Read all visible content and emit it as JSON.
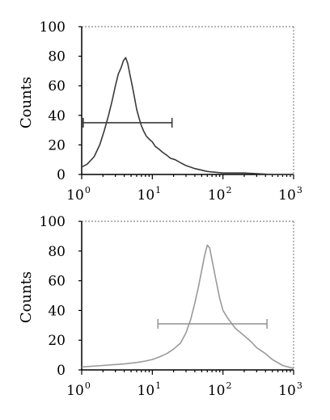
{
  "chart_data": [
    {
      "type": "line",
      "ylabel": "Counts",
      "xlabel": "",
      "x_scale": "log",
      "xlim": [
        1,
        1000
      ],
      "ylim": [
        0,
        100
      ],
      "yticks": [
        0,
        20,
        40,
        60,
        80,
        100
      ],
      "xticks": [
        {
          "base": "10",
          "exp": "0"
        },
        {
          "base": "10",
          "exp": "1"
        },
        {
          "base": "10",
          "exp": "2"
        },
        {
          "base": "10",
          "exp": "3"
        }
      ],
      "grid": false,
      "line_color": "#3a3a3a",
      "series": [
        {
          "x": [
            1.0,
            1.2,
            1.5,
            1.8,
            2.1,
            2.4,
            2.7,
            3.0,
            3.3,
            3.6,
            3.9,
            4.2,
            4.5,
            4.8,
            5.2,
            5.6,
            6.0,
            6.5,
            7.0,
            7.6,
            8.2,
            9.0,
            10,
            11,
            12.5,
            14,
            16,
            18,
            21,
            25,
            30,
            40,
            60,
            100,
            200,
            500,
            1000
          ],
          "y": [
            5,
            7,
            12,
            20,
            30,
            40,
            50,
            60,
            68,
            72,
            77,
            79,
            75,
            68,
            60,
            52,
            44,
            38,
            33,
            29,
            26,
            24,
            22,
            19,
            17,
            15,
            13,
            11,
            10,
            8,
            6,
            4,
            2,
            1,
            1,
            0,
            0
          ]
        }
      ],
      "gate": {
        "x_start": 1.05,
        "x_end": 19,
        "y": 35
      }
    },
    {
      "type": "line",
      "ylabel": "Counts",
      "xlabel": "",
      "x_scale": "log",
      "xlim": [
        1,
        1000
      ],
      "ylim": [
        0,
        100
      ],
      "yticks": [
        0,
        20,
        40,
        60,
        80,
        100
      ],
      "xticks": [
        {
          "base": "10",
          "exp": "0"
        },
        {
          "base": "10",
          "exp": "1"
        },
        {
          "base": "10",
          "exp": "2"
        },
        {
          "base": "10",
          "exp": "3"
        }
      ],
      "grid": false,
      "line_color": "#9a9a9a",
      "series": [
        {
          "x": [
            1.0,
            2,
            4,
            6,
            8,
            10,
            13,
            16,
            20,
            25,
            30,
            35,
            40,
            45,
            50,
            55,
            60,
            65,
            70,
            80,
            90,
            100,
            120,
            150,
            200,
            250,
            300,
            400,
            500,
            700,
            1000
          ],
          "y": [
            2,
            3,
            4,
            5,
            6,
            7,
            9,
            11,
            14,
            18,
            25,
            34,
            45,
            56,
            67,
            77,
            84,
            82,
            74,
            60,
            48,
            40,
            34,
            28,
            23,
            19,
            15,
            11,
            7,
            3,
            1
          ]
        }
      ],
      "gate": {
        "x_start": 12,
        "x_end": 420,
        "y": 31
      }
    }
  ]
}
